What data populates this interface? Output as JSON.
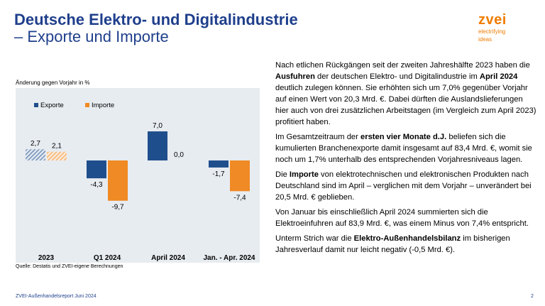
{
  "slide": {
    "title_line1": "Deutsche Elektro- und Digitalindustrie",
    "title_line2": "– Exporte und Importe",
    "logo_word": "zvei",
    "logo_tag1": "electrifying",
    "logo_tag2": "ideas",
    "footer": "ZVEI-Außenhandelsreport Juni 2024",
    "page_number": "2",
    "source": "Quelle: Destatis und ZVEI-eigene Berechnungen"
  },
  "colors": {
    "exporte": "#1f4e8c",
    "importe": "#f08a24",
    "title": "#1f3f8c",
    "chart_bg": "#e7ecf1"
  },
  "chart_data": {
    "type": "bar",
    "subtitle": "Änderung gegen Vorjahr in %",
    "categories": [
      "2023",
      "Q1 2024",
      "April 2024",
      "Jan. - Apr. 2024"
    ],
    "series": [
      {
        "name": "Exporte",
        "values": [
          2.7,
          -4.3,
          7.0,
          -1.7
        ],
        "labels": [
          "2,7",
          "-4,3",
          "7,0",
          "-1,7"
        ]
      },
      {
        "name": "Importe",
        "values": [
          2.1,
          -9.7,
          0.0,
          -7.4
        ],
        "labels": [
          "2,1",
          "-9,7",
          "0,0",
          "-7,4"
        ]
      }
    ],
    "hatched_categories": [
      "2023"
    ],
    "legend_position": "top-left",
    "grid": false
  },
  "text": {
    "p1": [
      {
        "t": "Nach etlichen Rückgängen seit der zweiten Jahreshälfte 2023 haben die ",
        "b": false
      },
      {
        "t": "Ausfuhren",
        "b": true
      },
      {
        "t": " der deutschen Elektro- und Digitalindustrie im ",
        "b": false
      },
      {
        "t": "April 2024",
        "b": true
      },
      {
        "t": " deutlich zulegen können. Sie erhöhten sich um 7,0% gegenüber Vorjahr auf einen Wert von 20,3 Mrd. €. Dabei dürften die Auslandslieferungen hier auch von drei zusätzlichen Arbeitstagen (im Vergleich zum April 2023) profitiert haben.",
        "b": false
      }
    ],
    "p2": [
      {
        "t": "Im Gesamtzeitraum der ",
        "b": false
      },
      {
        "t": "ersten vier Monate d.J.",
        "b": true
      },
      {
        "t": " beliefen sich die kumulierten Branchenexporte damit insgesamt auf 83,4 Mrd. €, womit sie noch um 1,7% unterhalb des entsprechenden Vorjahresniveaus lagen.",
        "b": false
      }
    ],
    "p3": [
      {
        "t": "Die ",
        "b": false
      },
      {
        "t": "Importe",
        "b": true
      },
      {
        "t": " von elektrotechnischen und elektronischen Produkten nach Deutschland sind im April – verglichen mit dem Vorjahr – unverändert bei 20,5 Mrd. € geblieben.",
        "b": false
      }
    ],
    "p4": [
      {
        "t": "Von Januar bis einschließlich April 2024 summierten sich die Elektroeinfuhren auf 83,9 Mrd. €, was einem Minus von 7,4% entspricht.",
        "b": false
      }
    ],
    "p5": [
      {
        "t": "Unterm Strich war die ",
        "b": false
      },
      {
        "t": "Elektro-Außenhandelsbilanz",
        "b": true
      },
      {
        "t": " im bisherigen Jahresverlauf damit nur leicht negativ (-0,5 Mrd. €).",
        "b": false
      }
    ]
  }
}
